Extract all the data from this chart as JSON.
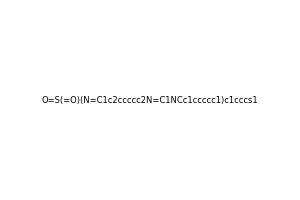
{
  "smiles": "O=S(=O)(N=C1c2ccccc2N=C1NCc1ccccc1)c1cccs1",
  "title": "",
  "bg_color": "#ffffff",
  "fig_width": 3.0,
  "fig_height": 2.0,
  "dpi": 100
}
